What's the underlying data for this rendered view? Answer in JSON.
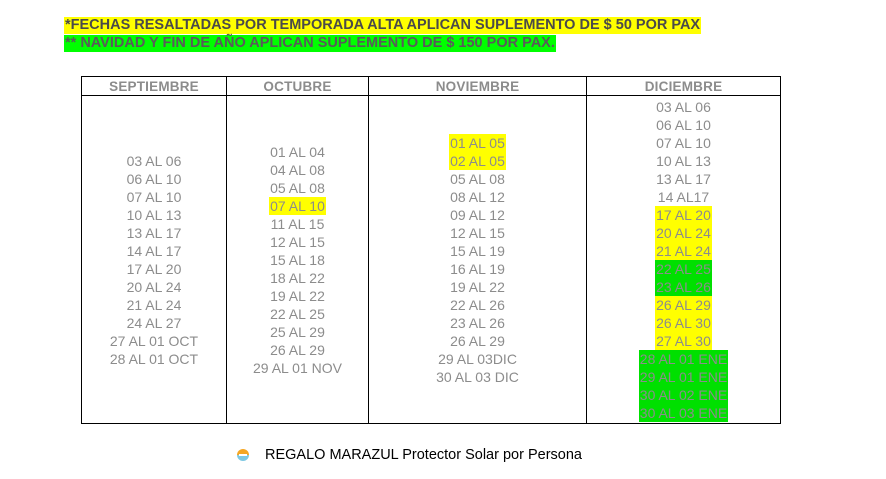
{
  "notices": [
    "*FECHAS RESALTADAS POR TEMPORADA ALTA APLICAN SUPLEMENTO DE $ 50 POR PAX",
    "** NAVIDAD Y FIN DE AÑO APLICAN SUPLEMENTO DE $ 150 POR PAX."
  ],
  "highlight_colors": {
    "yellow": "#ffff00",
    "green": "#00e000"
  },
  "months": [
    {
      "name": "SEPTIEMBRE",
      "dates": [
        {
          "text": "03 AL 06"
        },
        {
          "text": "06 AL 10"
        },
        {
          "text": "07 AL 10"
        },
        {
          "text": "10 AL 13"
        },
        {
          "text": "13 AL 17"
        },
        {
          "text": "14 AL 17"
        },
        {
          "text": "17 AL 20"
        },
        {
          "text": "20 AL 24"
        },
        {
          "text": "21 AL 24"
        },
        {
          "text": "24 AL 27"
        },
        {
          "text": "27 AL 01 OCT"
        },
        {
          "text": "28 AL 01 OCT"
        }
      ]
    },
    {
      "name": "OCTUBRE",
      "dates": [
        {
          "text": "01 AL 04"
        },
        {
          "text": "04 AL 08"
        },
        {
          "text": "05 AL 08"
        },
        {
          "text": "07 AL 10",
          "hl": "yellow"
        },
        {
          "text": "11 AL 15"
        },
        {
          "text": "12 AL 15"
        },
        {
          "text": "15 AL 18"
        },
        {
          "text": "18 AL 22"
        },
        {
          "text": "19 AL 22"
        },
        {
          "text": "22 AL 25"
        },
        {
          "text": "25 AL 29"
        },
        {
          "text": "26 AL 29"
        },
        {
          "text": "29 AL 01 NOV"
        }
      ]
    },
    {
      "name": "NOVIEMBRE",
      "dates": [
        {
          "text": "01 AL 05",
          "hl": "yellow"
        },
        {
          "text": "02 AL 05",
          "hl": "yellow"
        },
        {
          "text": "05 AL 08"
        },
        {
          "text": "08 AL 12"
        },
        {
          "text": "09 AL 12"
        },
        {
          "text": "12 AL 15"
        },
        {
          "text": "15 AL 19"
        },
        {
          "text": "16 AL 19"
        },
        {
          "text": "19 AL 22"
        },
        {
          "text": "22 AL 26"
        },
        {
          "text": "23 AL 26"
        },
        {
          "text": "26 AL 29"
        },
        {
          "text": "29 AL 03DIC"
        },
        {
          "text": "30 AL 03 DIC"
        }
      ]
    },
    {
      "name": "DICIEMBRE",
      "dates": [
        {
          "text": "03 AL 06"
        },
        {
          "text": "06 AL 10"
        },
        {
          "text": "07 AL 10"
        },
        {
          "text": "10 AL 13"
        },
        {
          "text": "13 AL 17"
        },
        {
          "text": "14 AL17"
        },
        {
          "text": "17 AL 20",
          "hl": "yellow"
        },
        {
          "text": "20 AL 24",
          "hl": "yellow"
        },
        {
          "text": "21 AL 24",
          "hl": "yellow"
        },
        {
          "text": "22 AL 25",
          "hl": "green"
        },
        {
          "text": "23 AL 26",
          "hl": "green"
        },
        {
          "text": "26 AL 29",
          "hl": "yellow"
        },
        {
          "text": "26 AL 30",
          "hl": "yellow"
        },
        {
          "text": "27 AL 30",
          "hl": "yellow"
        },
        {
          "text": "28 AL 01 ENE",
          "hl": "green"
        },
        {
          "text": "29 AL 01 ENE",
          "hl": "green"
        },
        {
          "text": "30 AL 02 ENE",
          "hl": "green"
        },
        {
          "text": "30 AL 03 ENE",
          "hl": "green"
        }
      ]
    }
  ],
  "footer": {
    "icon": "sun-icon",
    "text": "REGALO MARAZUL Protector Solar por Persona"
  }
}
